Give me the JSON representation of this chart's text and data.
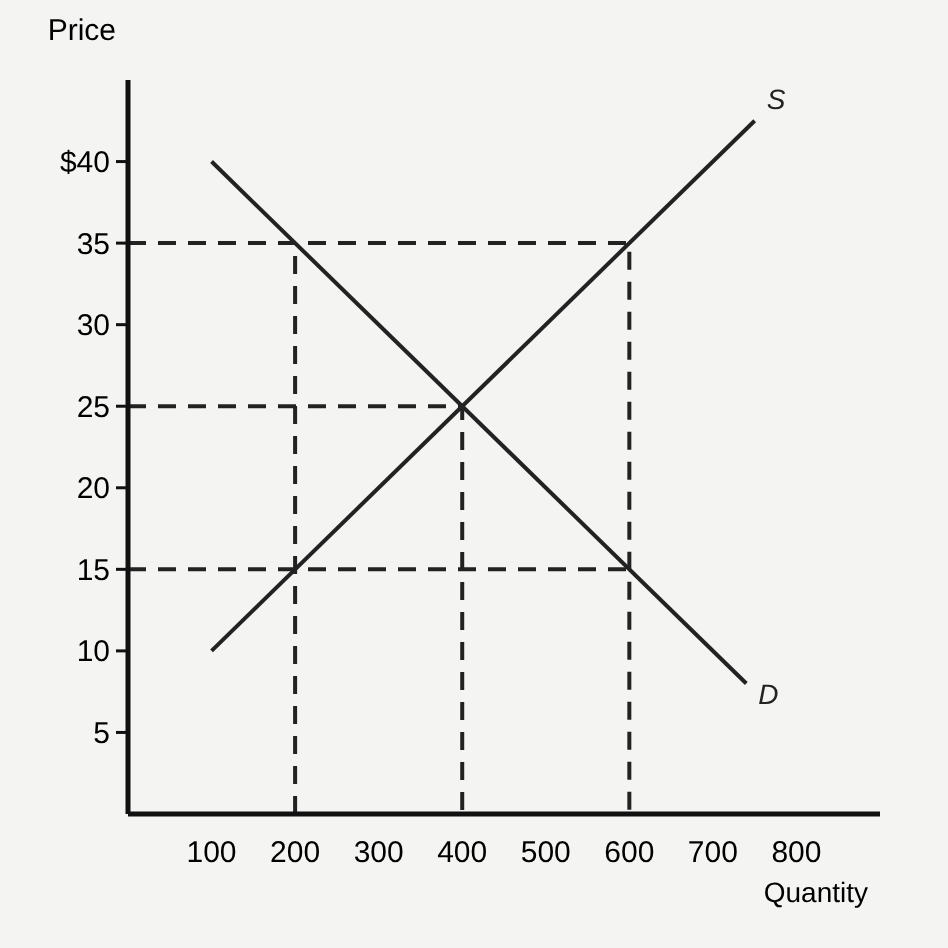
{
  "chart_data": {
    "type": "line",
    "xlabel": "Quantity",
    "ylabel": "Price",
    "xlim": [
      0,
      900
    ],
    "ylim": [
      0,
      45
    ],
    "xticks": [
      100,
      200,
      300,
      400,
      500,
      600,
      700,
      800
    ],
    "yticks": [
      5,
      10,
      15,
      20,
      25,
      30,
      {
        "value": 35,
        "label": "35"
      },
      {
        "value": 40,
        "label": "$40"
      }
    ],
    "marker": "none",
    "line_style": "solid",
    "series": [
      {
        "name": "S",
        "color": "#222222",
        "x": [
          100,
          750
        ],
        "values": [
          10,
          42.5
        ]
      },
      {
        "name": "D",
        "color": "#222222",
        "x": [
          100,
          740
        ],
        "values": [
          40,
          8
        ]
      },
      {
        "color": "#222222",
        "line_style": "dashed",
        "x": [
          0,
          600,
          600
        ],
        "values": [
          35,
          35,
          0
        ]
      },
      {
        "color": "#222222",
        "line_style": "dashed",
        "x": [
          0,
          400,
          400
        ],
        "values": [
          25,
          25,
          0
        ]
      },
      {
        "color": "#222222",
        "line_style": "dashed",
        "x": [
          0,
          600
        ],
        "values": [
          15,
          15
        ]
      },
      {
        "color": "#222222",
        "line_style": "dashed",
        "x": [
          200,
          200
        ],
        "values": [
          0,
          35
        ]
      }
    ]
  }
}
